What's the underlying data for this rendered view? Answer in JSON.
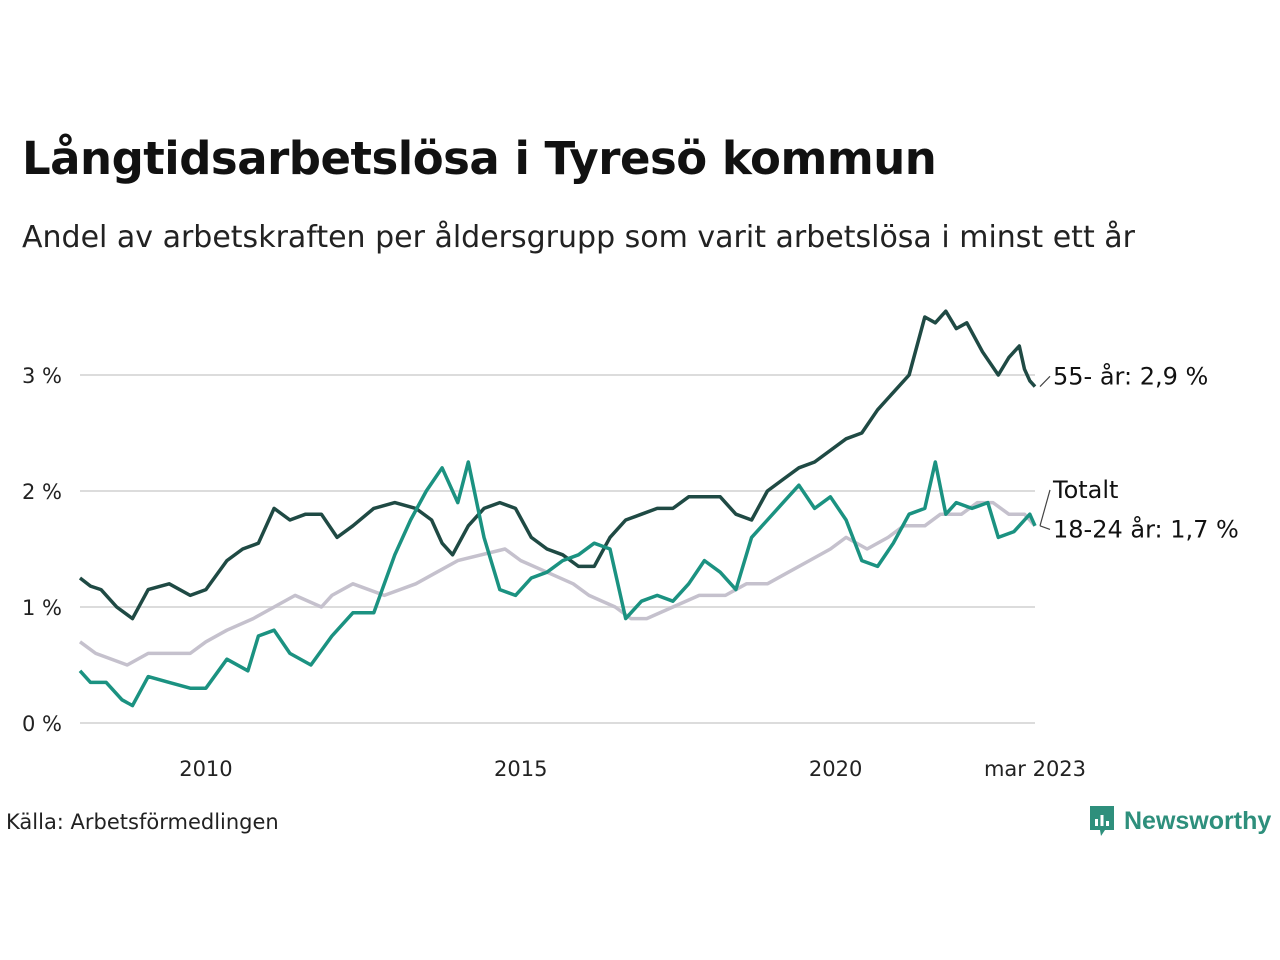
{
  "header": {
    "title": "Långtidsarbetslösa i Tyresö kommun",
    "subtitle": "Andel av arbetskraften per åldersgrupp som varit arbetslösa i minst ett år"
  },
  "footer": {
    "source": "Källa: Arbetsförmedlingen",
    "brand": "Newsworthy"
  },
  "colors": {
    "series_55": "#1f4a44",
    "series_total": "#c5c1cd",
    "series_18_24": "#1b9281",
    "grid": "#dcdcdc",
    "brand": "#2e8f7c"
  },
  "icons": {
    "logo": "newsworthy-chart-icon"
  },
  "chart_data": {
    "type": "line",
    "x_tick_labels": [
      "2010",
      "2015",
      "2020",
      "mar 2023"
    ],
    "y_tick_labels": [
      "0 %",
      "1 %",
      "2 %",
      "3 %"
    ],
    "y_ticks": [
      0,
      1,
      2,
      3
    ],
    "ylim": [
      0,
      3.6
    ],
    "xlim": [
      "2008-01",
      "2023-03"
    ],
    "grid": "horizontal",
    "end_labels": [
      "55- år: 2,9 %",
      "Totalt",
      "18-24 år: 1,7 %"
    ],
    "series": [
      {
        "name": "Totalt",
        "color": "#c5c1cd",
        "points": [
          [
            "2008-01",
            0.7
          ],
          [
            "2008-04",
            0.6
          ],
          [
            "2008-10",
            0.5
          ],
          [
            "2009-02",
            0.6
          ],
          [
            "2009-10",
            0.6
          ],
          [
            "2010-01",
            0.7
          ],
          [
            "2010-05",
            0.8
          ],
          [
            "2010-10",
            0.9
          ],
          [
            "2011-02",
            1.0
          ],
          [
            "2011-06",
            1.1
          ],
          [
            "2011-11",
            1.0
          ],
          [
            "2012-01",
            1.1
          ],
          [
            "2012-05",
            1.2
          ],
          [
            "2012-11",
            1.1
          ],
          [
            "2013-05",
            1.2
          ],
          [
            "2013-09",
            1.3
          ],
          [
            "2014-01",
            1.4
          ],
          [
            "2014-10",
            1.5
          ],
          [
            "2015-01",
            1.4
          ],
          [
            "2015-06",
            1.3
          ],
          [
            "2015-11",
            1.2
          ],
          [
            "2016-02",
            1.1
          ],
          [
            "2016-07",
            1.0
          ],
          [
            "2016-10",
            0.9
          ],
          [
            "2017-01",
            0.9
          ],
          [
            "2017-06",
            1.0
          ],
          [
            "2017-11",
            1.1
          ],
          [
            "2018-04",
            1.1
          ],
          [
            "2018-08",
            1.2
          ],
          [
            "2018-12",
            1.2
          ],
          [
            "2019-04",
            1.3
          ],
          [
            "2019-08",
            1.4
          ],
          [
            "2019-12",
            1.5
          ],
          [
            "2020-03",
            1.6
          ],
          [
            "2020-07",
            1.5
          ],
          [
            "2020-11",
            1.6
          ],
          [
            "2021-02",
            1.7
          ],
          [
            "2021-06",
            1.7
          ],
          [
            "2021-09",
            1.8
          ],
          [
            "2022-01",
            1.8
          ],
          [
            "2022-04",
            1.9
          ],
          [
            "2022-07",
            1.9
          ],
          [
            "2022-10",
            1.8
          ],
          [
            "2023-01",
            1.8
          ],
          [
            "2023-03",
            1.7
          ]
        ]
      },
      {
        "name": "55- år",
        "color": "#1f4a44",
        "points": [
          [
            "2008-01",
            1.25
          ],
          [
            "2008-03",
            1.18
          ],
          [
            "2008-05",
            1.15
          ],
          [
            "2008-08",
            1.0
          ],
          [
            "2008-11",
            0.9
          ],
          [
            "2009-02",
            1.15
          ],
          [
            "2009-06",
            1.2
          ],
          [
            "2009-10",
            1.1
          ],
          [
            "2010-01",
            1.15
          ],
          [
            "2010-05",
            1.4
          ],
          [
            "2010-08",
            1.5
          ],
          [
            "2010-11",
            1.55
          ],
          [
            "2011-02",
            1.85
          ],
          [
            "2011-05",
            1.75
          ],
          [
            "2011-08",
            1.8
          ],
          [
            "2011-11",
            1.8
          ],
          [
            "2012-02",
            1.6
          ],
          [
            "2012-05",
            1.7
          ],
          [
            "2012-09",
            1.85
          ],
          [
            "2013-01",
            1.9
          ],
          [
            "2013-05",
            1.85
          ],
          [
            "2013-08",
            1.75
          ],
          [
            "2013-10",
            1.55
          ],
          [
            "2013-12",
            1.45
          ],
          [
            "2014-03",
            1.7
          ],
          [
            "2014-06",
            1.85
          ],
          [
            "2014-09",
            1.9
          ],
          [
            "2014-12",
            1.85
          ],
          [
            "2015-03",
            1.6
          ],
          [
            "2015-06",
            1.5
          ],
          [
            "2015-09",
            1.45
          ],
          [
            "2015-12",
            1.35
          ],
          [
            "2016-03",
            1.35
          ],
          [
            "2016-06",
            1.6
          ],
          [
            "2016-09",
            1.75
          ],
          [
            "2016-12",
            1.8
          ],
          [
            "2017-03",
            1.85
          ],
          [
            "2017-06",
            1.85
          ],
          [
            "2017-09",
            1.95
          ],
          [
            "2017-12",
            1.95
          ],
          [
            "2018-03",
            1.95
          ],
          [
            "2018-06",
            1.8
          ],
          [
            "2018-09",
            1.75
          ],
          [
            "2018-12",
            2.0
          ],
          [
            "2019-03",
            2.1
          ],
          [
            "2019-06",
            2.2
          ],
          [
            "2019-09",
            2.25
          ],
          [
            "2019-12",
            2.35
          ],
          [
            "2020-03",
            2.45
          ],
          [
            "2020-06",
            2.5
          ],
          [
            "2020-09",
            2.7
          ],
          [
            "2020-12",
            2.85
          ],
          [
            "2021-03",
            3.0
          ],
          [
            "2021-06",
            3.5
          ],
          [
            "2021-08",
            3.45
          ],
          [
            "2021-10",
            3.55
          ],
          [
            "2021-12",
            3.4
          ],
          [
            "2022-02",
            3.45
          ],
          [
            "2022-05",
            3.2
          ],
          [
            "2022-08",
            3.0
          ],
          [
            "2022-10",
            3.15
          ],
          [
            "2022-12",
            3.25
          ],
          [
            "2023-01",
            3.05
          ],
          [
            "2023-02",
            2.95
          ],
          [
            "2023-03",
            2.9
          ]
        ]
      },
      {
        "name": "18-24 år",
        "color": "#1b9281",
        "points": [
          [
            "2008-01",
            0.45
          ],
          [
            "2008-03",
            0.35
          ],
          [
            "2008-06",
            0.35
          ],
          [
            "2008-09",
            0.2
          ],
          [
            "2008-11",
            0.15
          ],
          [
            "2009-02",
            0.4
          ],
          [
            "2009-06",
            0.35
          ],
          [
            "2009-10",
            0.3
          ],
          [
            "2010-01",
            0.3
          ],
          [
            "2010-05",
            0.55
          ],
          [
            "2010-09",
            0.45
          ],
          [
            "2010-11",
            0.75
          ],
          [
            "2011-02",
            0.8
          ],
          [
            "2011-05",
            0.6
          ],
          [
            "2011-09",
            0.5
          ],
          [
            "2012-01",
            0.75
          ],
          [
            "2012-05",
            0.95
          ],
          [
            "2012-09",
            0.95
          ],
          [
            "2013-01",
            1.45
          ],
          [
            "2013-04",
            1.75
          ],
          [
            "2013-07",
            2.0
          ],
          [
            "2013-10",
            2.2
          ],
          [
            "2014-01",
            1.9
          ],
          [
            "2014-03",
            2.25
          ],
          [
            "2014-06",
            1.6
          ],
          [
            "2014-09",
            1.15
          ],
          [
            "2014-12",
            1.1
          ],
          [
            "2015-03",
            1.25
          ],
          [
            "2015-06",
            1.3
          ],
          [
            "2015-09",
            1.4
          ],
          [
            "2015-12",
            1.45
          ],
          [
            "2016-03",
            1.55
          ],
          [
            "2016-06",
            1.5
          ],
          [
            "2016-09",
            0.9
          ],
          [
            "2016-12",
            1.05
          ],
          [
            "2017-03",
            1.1
          ],
          [
            "2017-06",
            1.05
          ],
          [
            "2017-09",
            1.2
          ],
          [
            "2017-12",
            1.4
          ],
          [
            "2018-03",
            1.3
          ],
          [
            "2018-06",
            1.15
          ],
          [
            "2018-09",
            1.6
          ],
          [
            "2018-12",
            1.75
          ],
          [
            "2019-03",
            1.9
          ],
          [
            "2019-06",
            2.05
          ],
          [
            "2019-09",
            1.85
          ],
          [
            "2019-12",
            1.95
          ],
          [
            "2020-03",
            1.75
          ],
          [
            "2020-06",
            1.4
          ],
          [
            "2020-09",
            1.35
          ],
          [
            "2020-12",
            1.55
          ],
          [
            "2021-03",
            1.8
          ],
          [
            "2021-06",
            1.85
          ],
          [
            "2021-08",
            2.25
          ],
          [
            "2021-10",
            1.8
          ],
          [
            "2021-12",
            1.9
          ],
          [
            "2022-03",
            1.85
          ],
          [
            "2022-06",
            1.9
          ],
          [
            "2022-08",
            1.6
          ],
          [
            "2022-11",
            1.65
          ],
          [
            "2023-01",
            1.75
          ],
          [
            "2023-02",
            1.8
          ],
          [
            "2023-03",
            1.7
          ]
        ]
      }
    ]
  }
}
